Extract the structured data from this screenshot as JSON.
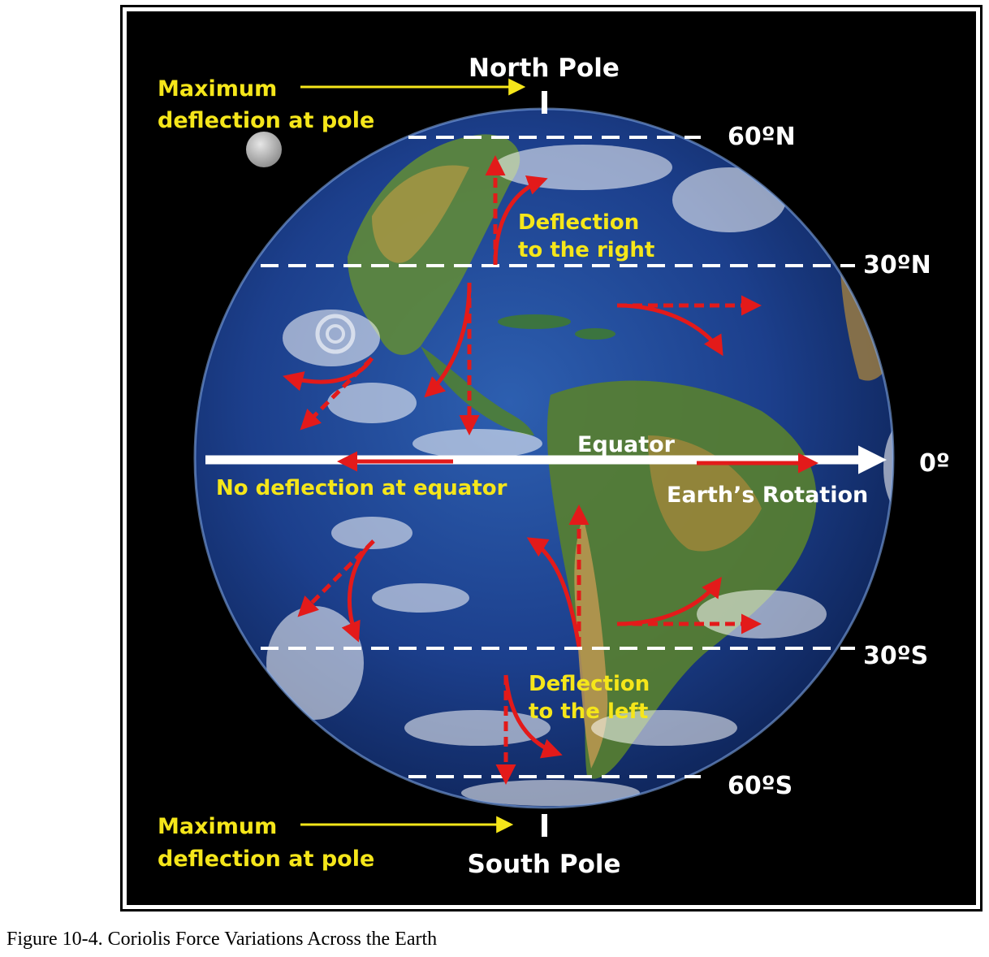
{
  "labels": {
    "north_pole": "North Pole",
    "south_pole": "South Pole",
    "max_deflection_top_line1": "Maximum",
    "max_deflection_top_line2": "deflection at pole",
    "max_deflection_bottom_line1": "Maximum",
    "max_deflection_bottom_line2": "deflection at pole",
    "lat_60n": "60ºN",
    "lat_30n": "30ºN",
    "lat_0": "0º",
    "lat_30s": "30ºS",
    "lat_60s": "60ºS",
    "equator": "Equator",
    "earth_rotation": "Earth’s Rotation",
    "no_deflection": "No deflection at equator",
    "deflection_right_line1": "Deflection",
    "deflection_right_line2": "to the right",
    "deflection_left_line1": "Deflection",
    "deflection_left_line2": "to the left"
  },
  "caption": "Figure 10-4. Coriolis Force Variations Across the Earth",
  "colors": {
    "arrow_red": "#e31a1a",
    "label_yellow": "#f5e61a",
    "line_white": "#ffffff",
    "ocean_blue": "#1b3f8a",
    "background": "#000000"
  }
}
